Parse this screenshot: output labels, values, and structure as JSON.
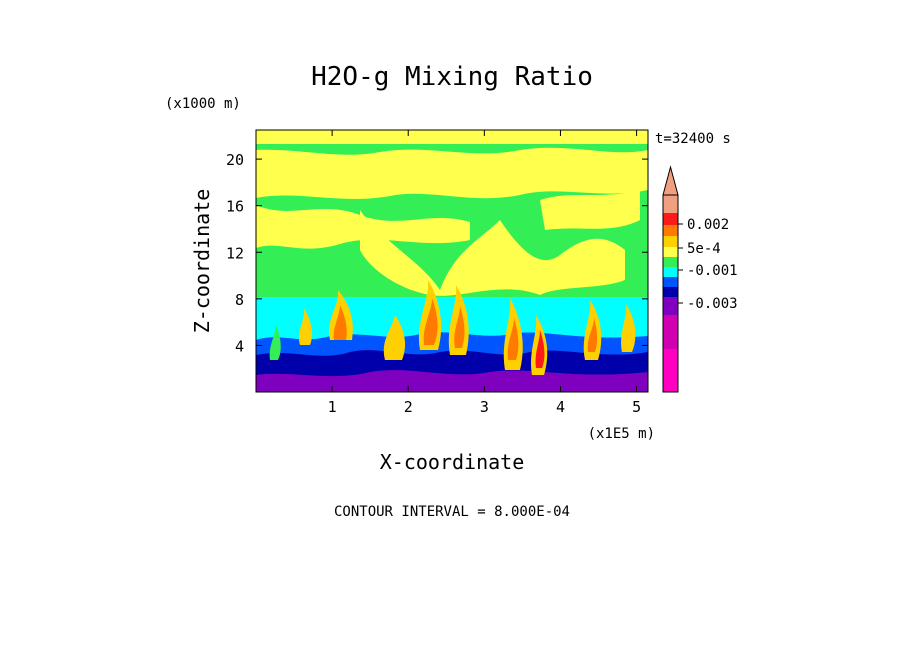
{
  "chart_data": {
    "type": "heatmap",
    "title": "H2O-g Mixing Ratio",
    "time_label": "t=32400 s",
    "xlabel": "X-coordinate",
    "ylabel": "Z-coordinate",
    "x_unit": "(x1E5 m)",
    "y_unit": "(x1000 m)",
    "xlim": [
      0,
      5.15
    ],
    "ylim": [
      0,
      22.5
    ],
    "x_ticks": [
      1,
      2,
      3,
      4,
      5
    ],
    "y_ticks": [
      4,
      8,
      12,
      16,
      20
    ],
    "x_tick_labels": [
      "1",
      "2",
      "3",
      "4",
      "5"
    ],
    "y_tick_labels": [
      "4",
      "8",
      "12",
      "16",
      "20"
    ],
    "contour_interval_text": "CONTOUR INTERVAL = 8.000E-04",
    "colorbar": {
      "levels_top_to_bottom": [
        "#f0a080",
        "#ff1a1a",
        "#ff7a00",
        "#ffd000",
        "#ffff4d",
        "#33ee55",
        "#00ffff",
        "#0055ff",
        "#0000aa",
        "#8000c0",
        "#d000b0",
        "#ff00c0"
      ],
      "labels": [
        {
          "text": "0.002",
          "value": 0.002
        },
        {
          "text": "5e-4",
          "value": 0.0005
        },
        {
          "text": "-0.001",
          "value": -0.001
        },
        {
          "text": "-0.003",
          "value": -0.003
        }
      ]
    }
  }
}
